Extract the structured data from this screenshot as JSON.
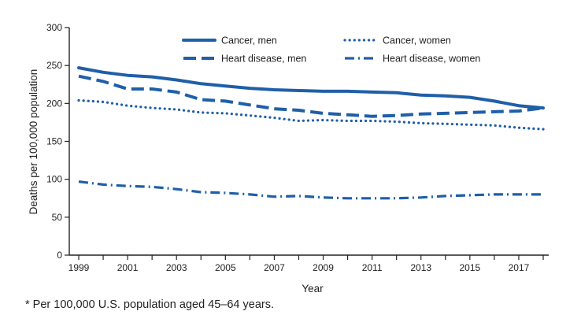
{
  "chart_data": {
    "type": "line",
    "xlabel": "Year",
    "ylabel": "Deaths per 100,000 population",
    "xlim": [
      1999,
      2018
    ],
    "ylim": [
      0,
      300
    ],
    "x_ticks": [
      1999,
      2000,
      2001,
      2002,
      2003,
      2004,
      2005,
      2006,
      2007,
      2008,
      2009,
      2010,
      2011,
      2012,
      2013,
      2014,
      2015,
      2016,
      2017,
      2018
    ],
    "x_tick_labels": [
      "1999",
      "2001",
      "2003",
      "2005",
      "2007",
      "2009",
      "2011",
      "2013",
      "2015",
      "2017"
    ],
    "y_ticks": [
      0,
      50,
      100,
      150,
      200,
      250,
      300
    ],
    "grid": false,
    "legend_position": "top-center",
    "x": [
      1999,
      2000,
      2001,
      2002,
      2003,
      2004,
      2005,
      2006,
      2007,
      2008,
      2009,
      2010,
      2011,
      2012,
      2013,
      2014,
      2015,
      2016,
      2017,
      2018
    ],
    "series": [
      {
        "name": "Cancer, men",
        "style": "solid",
        "color": "#1f5fa8",
        "values": [
          247,
          241,
          237,
          235,
          231,
          226,
          223,
          220,
          218,
          217,
          216,
          216,
          215,
          214,
          211,
          210,
          208,
          203,
          197,
          194
        ]
      },
      {
        "name": "Cancer, women",
        "style": "dotted",
        "color": "#1f5fa8",
        "values": [
          204,
          202,
          197,
          194,
          192,
          188,
          187,
          184,
          181,
          177,
          178,
          177,
          177,
          176,
          174,
          173,
          172,
          171,
          168,
          166
        ]
      },
      {
        "name": "Heart disease, men",
        "style": "dashed",
        "color": "#1f5fa8",
        "values": [
          236,
          229,
          219,
          219,
          215,
          205,
          203,
          198,
          193,
          191,
          187,
          185,
          183,
          184,
          186,
          187,
          188,
          189,
          190,
          194
        ]
      },
      {
        "name": "Heart disease, women",
        "style": "dash-dot",
        "color": "#1f5fa8",
        "values": [
          97,
          93,
          91,
          90,
          87,
          83,
          82,
          80,
          77,
          78,
          76,
          75,
          75,
          75,
          76,
          78,
          79,
          80,
          80,
          80
        ]
      }
    ]
  },
  "footnote": "* Per 100,000 U.S. population aged 45–64 years."
}
